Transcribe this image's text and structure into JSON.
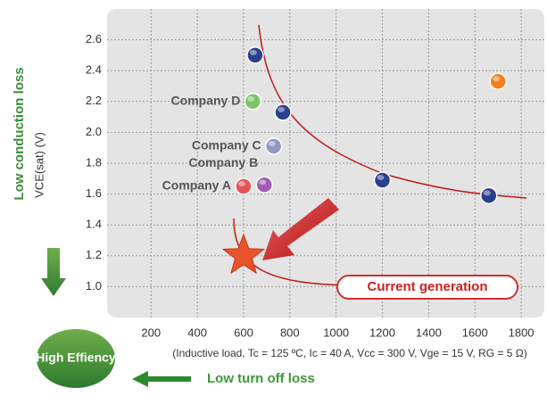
{
  "chart_data": {
    "type": "scatter",
    "ylabel": "VCE(sat) (V)",
    "xlabel": "(Inductive load, Tc = 125 ºC, Ic = 40 A, Vcc = 300 V, Vge = 15 V, RG = 5 Ω)",
    "xlim": [
      10,
      1900
    ],
    "xticks": [
      200,
      400,
      600,
      800,
      1000,
      1200,
      1400,
      1600,
      1800
    ],
    "ylim": [
      0.8,
      2.8
    ],
    "yticks": [
      {
        "value": 1,
        "label": "1.0"
      },
      1.2,
      1.4,
      1.6,
      1.8,
      {
        "value": 2,
        "label": "2.0"
      },
      2.2,
      2.4,
      2.6
    ],
    "grid": true,
    "series": [
      {
        "marker": "circle",
        "color": "#2b3f8f",
        "x": [
          650,
          770,
          1200,
          1660
        ],
        "values": [
          2.5,
          2.13,
          1.69,
          1.59
        ]
      },
      {
        "marker": "circle",
        "color": "#f0801e",
        "x": [
          1700
        ],
        "values": [
          2.33
        ]
      },
      {
        "marker": "circle",
        "colors": [
          "#7cc46a",
          "#8e98c8",
          "#a25bb4",
          "#e8545a"
        ],
        "x": [
          640,
          730,
          690,
          600
        ],
        "values": [
          2.2,
          1.91,
          1.66,
          1.65
        ],
        "point_labels": [
          "Company D",
          "Company C",
          "Company B",
          "Company A"
        ]
      },
      {
        "marker": "star",
        "color": "#e8532a",
        "x": [
          600
        ],
        "values": [
          1.2
        ],
        "point_labels": [
          "Current generation"
        ]
      }
    ],
    "annotations": [
      "Low conduction loss",
      "Low turn off loss",
      "High Effiency"
    ]
  }
}
